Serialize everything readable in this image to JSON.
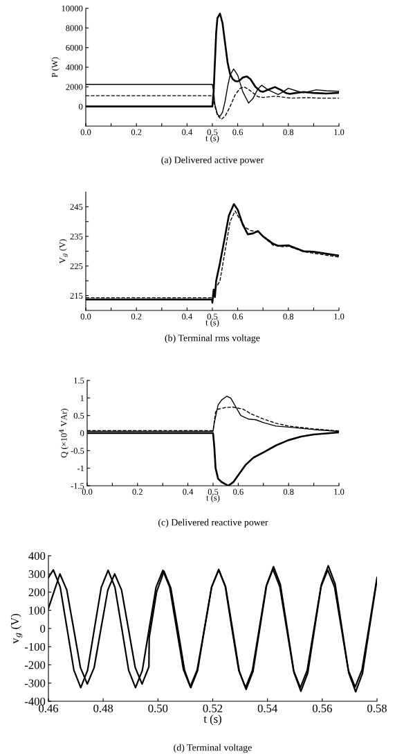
{
  "chart_data": [
    {
      "type": "line",
      "title": "(a) Delivered active power",
      "xlabel": "t (s)",
      "ylabel": "P (W)",
      "xlim": [
        0,
        1
      ],
      "ylim": [
        -2000,
        10000
      ],
      "xticks": [
        {
          "value": 0,
          "label": "0.0"
        },
        {
          "value": 0.1,
          "label": null
        },
        {
          "value": 0.2,
          "label": "0.2"
        },
        {
          "value": 0.3,
          "label": null
        },
        {
          "value": 0.4,
          "label": "0.4"
        },
        {
          "value": 0.5,
          "label": "0.5"
        },
        {
          "value": 0.6,
          "label": "0.6"
        },
        {
          "value": 0.7,
          "label": null
        },
        {
          "value": 0.8,
          "label": "0.8"
        },
        {
          "value": 0.9,
          "label": null
        },
        {
          "value": 1,
          "label": "1.0"
        }
      ],
      "yticks": [
        0,
        2000,
        4000,
        6000,
        8000,
        10000
      ],
      "grid": false,
      "legend": false,
      "series": [
        {
          "color": "#000000",
          "line_style": "solid",
          "x": [
            0,
            0.5,
            0.505,
            0.51,
            0.515,
            0.52,
            0.53,
            0.54,
            0.55,
            0.56,
            0.57,
            0.58,
            0.59,
            0.6,
            0.61,
            0.62,
            0.636,
            0.65,
            0.67,
            0.69,
            0.7,
            0.72,
            0.747,
            0.77,
            0.79,
            0.806,
            0.83,
            0.86,
            0.9,
            0.95,
            1.0
          ],
          "values": [
            0,
            0,
            1500,
            4500,
            7500,
            9000,
            9460,
            8500,
            6500,
            4500,
            3300,
            2800,
            2600,
            2550,
            2700,
            2950,
            3060,
            2800,
            2000,
            1550,
            1500,
            1700,
            1980,
            1700,
            1380,
            1280,
            1380,
            1480,
            1380,
            1320,
            1400
          ]
        },
        {
          "color": "#000000",
          "line_style": "solid",
          "x": [
            0,
            0.5,
            0.505,
            0.51,
            0.52,
            0.53,
            0.54,
            0.55,
            0.56,
            0.57,
            0.584,
            0.6,
            0.62,
            0.643,
            0.66,
            0.68,
            0.695,
            0.72,
            0.76,
            0.78,
            0.8,
            0.83,
            0.86,
            0.91,
            0.95,
            1.0
          ],
          "values": [
            2250,
            2250,
            1500,
            200,
            -800,
            -1010,
            -600,
            500,
            2000,
            3200,
            3810,
            3200,
            1500,
            350,
            800,
            1800,
            2160,
            1700,
            1220,
            1500,
            1860,
            1600,
            1400,
            1700,
            1600,
            1550
          ]
        },
        {
          "color": "#000000",
          "line_style": "dashed",
          "x": [
            0,
            0.5,
            0.51,
            0.52,
            0.535,
            0.55,
            0.57,
            0.59,
            0.61,
            0.625,
            0.64,
            0.66,
            0.68,
            0.7,
            0.75,
            0.81,
            0.87,
            0.93,
            1.0
          ],
          "values": [
            1100,
            1100,
            0,
            -900,
            -1320,
            -1000,
            0,
            1200,
            1850,
            1980,
            1800,
            1400,
            1000,
            920,
            1050,
            850,
            900,
            850,
            850
          ]
        }
      ]
    },
    {
      "type": "line",
      "title": "(b) Terminal rms voltage",
      "xlabel": "t (s)",
      "ylabel": "V$_{g}$ (V)",
      "xlim": [
        0,
        1
      ],
      "ylim": [
        210,
        250
      ],
      "xticks": [
        {
          "value": 0,
          "label": "0.0"
        },
        {
          "value": 0.1,
          "label": null
        },
        {
          "value": 0.2,
          "label": "0.2"
        },
        {
          "value": 0.3,
          "label": null
        },
        {
          "value": 0.4,
          "label": "0.4"
        },
        {
          "value": 0.5,
          "label": "0.5"
        },
        {
          "value": 0.6,
          "label": "0.6"
        },
        {
          "value": 0.7,
          "label": null
        },
        {
          "value": 0.8,
          "label": "0.8"
        },
        {
          "value": 0.9,
          "label": null
        },
        {
          "value": 1,
          "label": "1.0"
        }
      ],
      "yticks": [
        215,
        {
          "value": 220,
          "label": null
        },
        225,
        {
          "value": 230,
          "label": null
        },
        235,
        {
          "value": 240,
          "label": null
        },
        245
      ],
      "grid": false,
      "legend": false,
      "series": [
        {
          "color": "#000000",
          "line_style": "solid",
          "x": [
            0,
            0.499,
            0.5,
            0.505,
            0.51,
            0.515,
            0.53,
            0.55,
            0.565,
            0.585,
            0.6,
            0.62,
            0.64,
            0.66,
            0.68,
            0.7,
            0.74,
            0.76,
            0.8,
            0.86,
            0.9,
            1.0
          ],
          "values": [
            213.7,
            213.7,
            212.6,
            217,
            214.5,
            220,
            226,
            235,
            242,
            245.9,
            244,
            239,
            235.7,
            236,
            236.8,
            235,
            232.5,
            231.8,
            232,
            230,
            229.8,
            228.5
          ]
        },
        {
          "color": "#000000",
          "line_style": "dashed",
          "x": [
            0,
            0.499,
            0.5,
            0.507,
            0.52,
            0.53,
            0.54,
            0.56,
            0.57,
            0.59,
            0.6,
            0.63,
            0.65,
            0.68,
            0.7,
            0.74,
            0.78,
            0.8,
            0.86,
            0.9,
            1.0
          ],
          "values": [
            214.3,
            214.3,
            213,
            217,
            218.5,
            220,
            225,
            235,
            240,
            243.6,
            242,
            238,
            237,
            236.5,
            235,
            232,
            231.5,
            231.7,
            229.8,
            229.3,
            228
          ]
        }
      ]
    },
    {
      "type": "line",
      "title": "(c) Delivered reactive power",
      "xlabel": "t (s)",
      "ylabel": "Q (×10$^{4}$ VAr)",
      "xlim": [
        0,
        1
      ],
      "ylim": [
        -1.5,
        1.5
      ],
      "xticks": [
        {
          "value": 0,
          "label": "0.0"
        },
        {
          "value": 0.1,
          "label": null
        },
        {
          "value": 0.2,
          "label": "0.2"
        },
        {
          "value": 0.3,
          "label": null
        },
        {
          "value": 0.4,
          "label": "0.4"
        },
        {
          "value": 0.5,
          "label": "0.5"
        },
        {
          "value": 0.6,
          "label": "0.6"
        },
        {
          "value": 0.7,
          "label": null
        },
        {
          "value": 0.8,
          "label": "0.8"
        },
        {
          "value": 0.9,
          "label": null
        },
        {
          "value": 1,
          "label": "1.0"
        }
      ],
      "yticks": [
        {
          "value": -1.5,
          "label": "-1.5"
        },
        {
          "value": -1,
          "label": "-1"
        },
        {
          "value": -0.5,
          "label": "-0.5"
        },
        0,
        0.5,
        1,
        1.5
      ],
      "grid": false,
      "legend": false,
      "series": [
        {
          "color": "#000000",
          "line_style": "solid",
          "x": [
            0,
            0.5,
            0.505,
            0.51,
            0.52,
            0.535,
            0.56,
            0.58,
            0.6,
            0.63,
            0.66,
            0.7,
            0.75,
            0.8,
            0.85,
            0.9,
            1.0
          ],
          "values": [
            0,
            0,
            -0.4,
            -1.0,
            -1.3,
            -1.4,
            -1.5,
            -1.4,
            -1.2,
            -0.9,
            -0.7,
            -0.55,
            -0.35,
            -0.2,
            -0.1,
            -0.04,
            0.02
          ]
        },
        {
          "color": "#000000",
          "line_style": "solid",
          "x": [
            0,
            0.5,
            0.505,
            0.52,
            0.535,
            0.555,
            0.57,
            0.59,
            0.61,
            0.64,
            0.67,
            0.7,
            0.75,
            0.8,
            0.9,
            1.0
          ],
          "values": [
            0.05,
            0.05,
            0.3,
            0.8,
            0.95,
            1.05,
            1.0,
            0.75,
            0.5,
            0.4,
            0.38,
            0.3,
            0.2,
            0.17,
            0.1,
            0.05
          ]
        },
        {
          "color": "#000000",
          "line_style": "dashed",
          "x": [
            0,
            0.5,
            0.51,
            0.52,
            0.55,
            0.58,
            0.62,
            0.65,
            0.7,
            0.75,
            0.8,
            0.9,
            1.0
          ],
          "values": [
            0.07,
            0.07,
            0.6,
            0.68,
            0.73,
            0.74,
            0.68,
            0.55,
            0.4,
            0.28,
            0.2,
            0.12,
            0.06
          ]
        }
      ]
    },
    {
      "type": "line",
      "title": "(d) Terminal voltage",
      "xlabel": "t (s)",
      "ylabel": "v$_{g}$ (V)",
      "xlim": [
        0.46,
        0.58
      ],
      "ylim": [
        -400,
        400
      ],
      "xticks": [
        {
          "value": 0.46,
          "label": "0.46"
        },
        {
          "value": 0.48,
          "label": "0.48"
        },
        {
          "value": 0.5,
          "label": "0.50"
        },
        {
          "value": 0.52,
          "label": "0.52"
        },
        {
          "value": 0.54,
          "label": "0.54"
        },
        {
          "value": 0.56,
          "label": "0.56"
        },
        {
          "value": 0.58,
          "label": "0.58"
        }
      ],
      "yticks": [
        -400,
        -300,
        -200,
        -100,
        0,
        100,
        200,
        300,
        400
      ],
      "grid": false,
      "legend": false,
      "series": [
        {
          "color": "#000000",
          "line_style": "solid",
          "x": [
            0.46,
            0.4618,
            0.4643,
            0.4668,
            0.4693,
            0.4718,
            0.4743,
            0.4768,
            0.4793,
            0.4818,
            0.4843,
            0.4868,
            0.4893,
            0.4918,
            0.4943,
            0.4968,
            0.4993,
            0.5018,
            0.5043,
            0.5068,
            0.5093,
            0.5118,
            0.5143,
            0.517,
            0.5196,
            0.5222,
            0.5247,
            0.5272,
            0.5297,
            0.5322,
            0.5347,
            0.5372,
            0.5397,
            0.5422,
            0.5447,
            0.5472,
            0.5497,
            0.5522,
            0.5547,
            0.5572,
            0.5597,
            0.5622,
            0.5647,
            0.5672,
            0.5697,
            0.5722,
            0.5747,
            0.5772,
            0.58
          ],
          "values": [
            280,
            322,
            228,
            0,
            -229,
            -325,
            -230,
            0,
            226,
            320,
            226,
            0,
            -230,
            -325,
            -230,
            0,
            226,
            320,
            226,
            0,
            -226,
            -320,
            -228,
            0,
            228,
            322,
            230,
            0,
            -235,
            -335,
            -237,
            0,
            240,
            340,
            242,
            0,
            -243,
            -345,
            -245,
            0,
            243,
            345,
            245,
            0,
            -245,
            -348,
            -246,
            0,
            270
          ]
        },
        {
          "color": "#000000",
          "line_style": "solid",
          "x": [
            0.46,
            0.4642,
            0.4667,
            0.4692,
            0.4717,
            0.4742,
            0.4767,
            0.4792,
            0.4817,
            0.4842,
            0.4867,
            0.4892,
            0.4917,
            0.4942,
            0.4967,
            0.4968,
            0.4995,
            0.5022,
            0.5047,
            0.5072,
            0.5097,
            0.512,
            0.5145,
            0.517,
            0.5196,
            0.5222,
            0.5246,
            0.527,
            0.5295,
            0.532,
            0.5345,
            0.537,
            0.5395,
            0.542,
            0.5445,
            0.547,
            0.5495,
            0.552,
            0.5545,
            0.557,
            0.5595,
            0.562,
            0.5645,
            0.567,
            0.5695,
            0.572,
            0.5745,
            0.577,
            0.58
          ],
          "values": [
            110,
            300,
            212,
            0,
            -215,
            -305,
            -215,
            0,
            212,
            300,
            212,
            0,
            -215,
            -305,
            -210,
            -50,
            200,
            315,
            222,
            0,
            -228,
            -325,
            -230,
            0,
            228,
            325,
            230,
            0,
            -230,
            -325,
            -230,
            0,
            230,
            325,
            230,
            0,
            -230,
            -325,
            -230,
            0,
            228,
            322,
            228,
            0,
            -228,
            -322,
            -228,
            0,
            280
          ]
        }
      ]
    }
  ]
}
